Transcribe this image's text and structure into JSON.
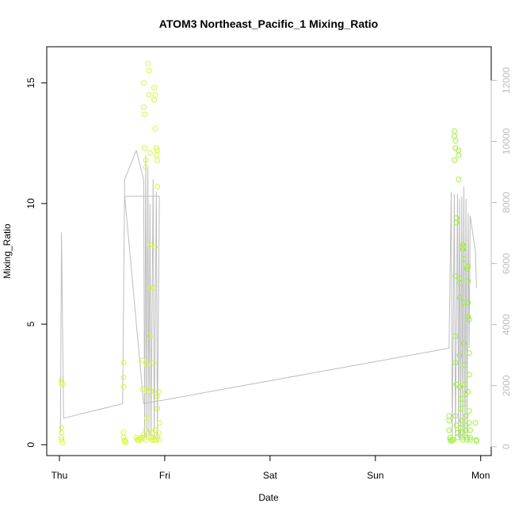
{
  "chart_data": {
    "type": "scatter",
    "title": "ATOM3 Northeast_Pacific_1 Mixing_Ratio",
    "xlabel": "Date",
    "ylabel": "Mixing_Ratio",
    "x_unit": "days",
    "xlim": [
      -0.12,
      4.1
    ],
    "ylim": [
      -0.45,
      16.5
    ],
    "x_ticks": [
      {
        "value": 0,
        "label": "Thu"
      },
      {
        "value": 1,
        "label": "Fri"
      },
      {
        "value": 2,
        "label": "Sat"
      },
      {
        "value": 3,
        "label": "Sun"
      },
      {
        "value": 4,
        "label": "Mon"
      }
    ],
    "y_ticks": [
      0,
      5,
      10,
      15
    ],
    "secondary_axis": {
      "range": [
        -290,
        13100
      ],
      "ticks": [
        0,
        2000,
        4000,
        6000,
        8000,
        10000,
        12000
      ],
      "color": "#bdbdbd"
    },
    "point_colors": {
      "early": "#d9f53a",
      "late": "#9cf03c"
    },
    "line_color": "#bdbdbd",
    "grid": false,
    "points": [
      [
        0.02,
        2.6
      ],
      [
        0.02,
        2.7
      ],
      [
        0.03,
        2.5
      ],
      [
        0.02,
        0.7
      ],
      [
        0.02,
        0.5
      ],
      [
        0.02,
        0.3
      ],
      [
        0.02,
        0.2
      ],
      [
        0.03,
        0.1
      ],
      [
        0.61,
        3.4
      ],
      [
        0.61,
        2.8
      ],
      [
        0.61,
        2.4
      ],
      [
        0.61,
        0.5
      ],
      [
        0.61,
        0.3
      ],
      [
        0.62,
        0.2
      ],
      [
        0.62,
        0.15
      ],
      [
        0.63,
        0.1
      ],
      [
        0.73,
        0.3
      ],
      [
        0.74,
        0.2
      ],
      [
        0.75,
        0.2
      ],
      [
        0.76,
        0.25
      ],
      [
        0.77,
        0.2
      ],
      [
        0.78,
        0.3
      ],
      [
        0.79,
        3.5
      ],
      [
        0.79,
        2.3
      ],
      [
        0.8,
        15.0
      ],
      [
        0.8,
        14.0
      ],
      [
        0.81,
        13.7
      ],
      [
        0.81,
        12.3
      ],
      [
        0.82,
        11.8
      ],
      [
        0.82,
        11.5
      ],
      [
        0.8,
        0.4
      ],
      [
        0.81,
        0.3
      ],
      [
        0.82,
        0.2
      ],
      [
        0.82,
        0.6
      ],
      [
        0.83,
        1.1
      ],
      [
        0.83,
        3.3
      ],
      [
        0.83,
        2.2
      ],
      [
        0.84,
        15.8
      ],
      [
        0.85,
        15.5
      ],
      [
        0.85,
        14.5
      ],
      [
        0.86,
        12.1
      ],
      [
        0.86,
        8.3
      ],
      [
        0.86,
        6.5
      ],
      [
        0.86,
        4.5
      ],
      [
        0.86,
        2.3
      ],
      [
        0.87,
        2.2
      ],
      [
        0.87,
        0.3
      ],
      [
        0.88,
        0.2
      ],
      [
        0.88,
        0.5
      ],
      [
        0.89,
        6.5
      ],
      [
        0.89,
        3.4
      ],
      [
        0.89,
        0.3
      ],
      [
        0.9,
        14.8
      ],
      [
        0.9,
        14.3
      ],
      [
        0.91,
        14.5
      ],
      [
        0.91,
        13.1
      ],
      [
        0.91,
        8.2
      ],
      [
        0.91,
        0.6
      ],
      [
        0.92,
        12.3
      ],
      [
        0.92,
        12.0
      ],
      [
        0.93,
        12.2
      ],
      [
        0.93,
        11.8
      ],
      [
        0.93,
        10.7
      ],
      [
        0.93,
        2.0
      ],
      [
        0.93,
        1.5
      ],
      [
        0.94,
        2.2
      ],
      [
        0.92,
        0.2
      ],
      [
        0.93,
        0.3
      ],
      [
        0.94,
        0.5
      ],
      [
        0.95,
        0.9
      ],
      [
        0.95,
        0.2
      ],
      [
        0.9,
        0.2
      ],
      [
        0.88,
        0.2
      ],
      [
        3.7,
        1.2
      ],
      [
        3.7,
        1.0
      ],
      [
        3.7,
        0.6
      ],
      [
        3.71,
        0.3
      ],
      [
        3.71,
        0.2
      ],
      [
        3.72,
        0.15
      ],
      [
        3.73,
        0.2
      ],
      [
        3.74,
        0.2
      ],
      [
        3.75,
        13.0
      ],
      [
        3.75,
        12.8
      ],
      [
        3.76,
        12.6
      ],
      [
        3.76,
        12.3
      ],
      [
        3.75,
        11.8
      ],
      [
        3.77,
        9.4
      ],
      [
        3.77,
        9.2
      ],
      [
        3.76,
        7.0
      ],
      [
        3.76,
        4.5
      ],
      [
        3.76,
        3.4
      ],
      [
        3.77,
        2.5
      ],
      [
        3.76,
        1.2
      ],
      [
        3.77,
        0.8
      ],
      [
        3.78,
        0.5
      ],
      [
        3.78,
        0.3
      ],
      [
        3.79,
        12.2
      ],
      [
        3.79,
        12.0
      ],
      [
        3.79,
        11.0
      ],
      [
        3.8,
        6.9
      ],
      [
        3.8,
        6.7
      ],
      [
        3.8,
        6.1
      ],
      [
        3.8,
        3.7
      ],
      [
        3.8,
        2.4
      ],
      [
        3.81,
        1.9
      ],
      [
        3.81,
        1.5
      ],
      [
        3.82,
        1.0
      ],
      [
        3.81,
        0.7
      ],
      [
        3.82,
        0.5
      ],
      [
        3.82,
        0.3
      ],
      [
        3.83,
        0.2
      ],
      [
        3.83,
        8.3
      ],
      [
        3.83,
        8.1
      ],
      [
        3.84,
        8.2
      ],
      [
        3.84,
        7.7
      ],
      [
        3.84,
        5.9
      ],
      [
        3.84,
        4.2
      ],
      [
        3.85,
        3.3
      ],
      [
        3.85,
        2.5
      ],
      [
        3.85,
        2.1
      ],
      [
        3.85,
        1.7
      ],
      [
        3.86,
        1.2
      ],
      [
        3.86,
        0.8
      ],
      [
        3.86,
        0.6
      ],
      [
        3.87,
        0.3
      ],
      [
        3.87,
        0.2
      ],
      [
        3.87,
        7.3
      ],
      [
        3.88,
        7.4
      ],
      [
        3.88,
        6.8
      ],
      [
        3.88,
        5.9
      ],
      [
        3.88,
        5.3
      ],
      [
        3.89,
        5.2
      ],
      [
        3.89,
        3.8
      ],
      [
        3.89,
        2.9
      ],
      [
        3.88,
        2.2
      ],
      [
        3.89,
        1.4
      ],
      [
        3.89,
        0.9
      ],
      [
        3.9,
        0.6
      ],
      [
        3.9,
        0.3
      ],
      [
        3.9,
        0.2
      ],
      [
        3.95,
        0.9
      ],
      [
        3.96,
        0.2
      ],
      [
        3.96,
        0.15
      ]
    ],
    "altitude_line": [
      [
        0.01,
        0.5
      ],
      [
        0.02,
        8.8
      ],
      [
        0.04,
        1.1
      ],
      [
        0.6,
        1.7
      ],
      [
        0.62,
        11.0
      ],
      [
        0.73,
        12.2
      ],
      [
        0.8,
        11.0
      ],
      [
        0.81,
        0.3
      ],
      [
        0.82,
        12.0
      ],
      [
        0.83,
        0.3
      ],
      [
        0.84,
        11.5
      ],
      [
        0.85,
        0.3
      ],
      [
        0.86,
        10.0
      ],
      [
        0.87,
        0.3
      ],
      [
        0.89,
        11.0
      ],
      [
        0.9,
        0.3
      ],
      [
        0.92,
        10.5
      ],
      [
        0.93,
        0.3
      ],
      [
        0.95,
        10.3
      ],
      [
        0.62,
        10.3
      ],
      [
        0.8,
        1.7
      ],
      [
        3.7,
        4.0
      ],
      [
        3.72,
        10.5
      ],
      [
        3.73,
        0.3
      ],
      [
        3.75,
        10.4
      ],
      [
        3.76,
        0.3
      ],
      [
        3.78,
        10.4
      ],
      [
        3.79,
        0.3
      ],
      [
        3.8,
        10.2
      ],
      [
        3.81,
        0.3
      ],
      [
        3.82,
        10.3
      ],
      [
        3.83,
        0.3
      ],
      [
        3.84,
        10.7
      ],
      [
        3.85,
        0.3
      ],
      [
        3.86,
        10.2
      ],
      [
        3.87,
        0.3
      ],
      [
        3.88,
        9.6
      ],
      [
        3.89,
        4.0
      ],
      [
        3.9,
        9.5
      ],
      [
        3.95,
        8.0
      ],
      [
        3.96,
        6.5
      ]
    ]
  }
}
